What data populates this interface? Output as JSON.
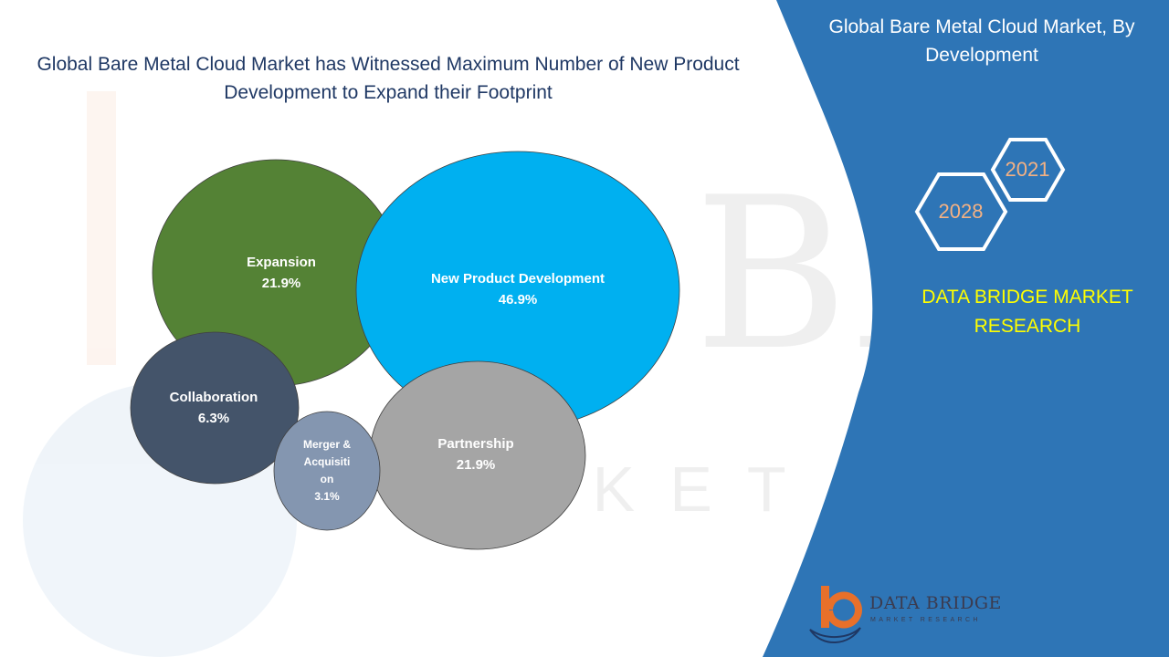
{
  "title": "Global Bare Metal Cloud Market has Witnessed Maximum Number of New Product Development to Expand their Footprint",
  "sidebar": {
    "title": "Global Bare Metal Cloud Market, By Development",
    "year_front": "2028",
    "year_back": "2021",
    "brand": "DATA BRIDGE MARKET RESEARCH"
  },
  "logo": {
    "name": "DATA BRIDGE",
    "tagline": "MARKET RESEARCH"
  },
  "colors": {
    "sidebar_blue": "#2e75b6",
    "brand_yellow": "#ffff00",
    "title_navy": "#1f3864"
  },
  "chart_data": {
    "type": "bubble",
    "unit": "%",
    "segments": [
      {
        "name": "Expansion",
        "value": 21.9,
        "label": "21.9%",
        "color": "#548235"
      },
      {
        "name": "New Product Development",
        "value": 46.9,
        "label": "46.9%",
        "color": "#00b0f0"
      },
      {
        "name": "Collaboration",
        "value": 6.3,
        "label": "6.3%",
        "color": "#44546a"
      },
      {
        "name": "Partnership",
        "value": 21.9,
        "label": "21.9%",
        "color": "#a5a5a5"
      },
      {
        "name": "Merger & Acquisition",
        "value": 3.1,
        "label": "3.1%",
        "color": "#8496b0"
      }
    ]
  }
}
